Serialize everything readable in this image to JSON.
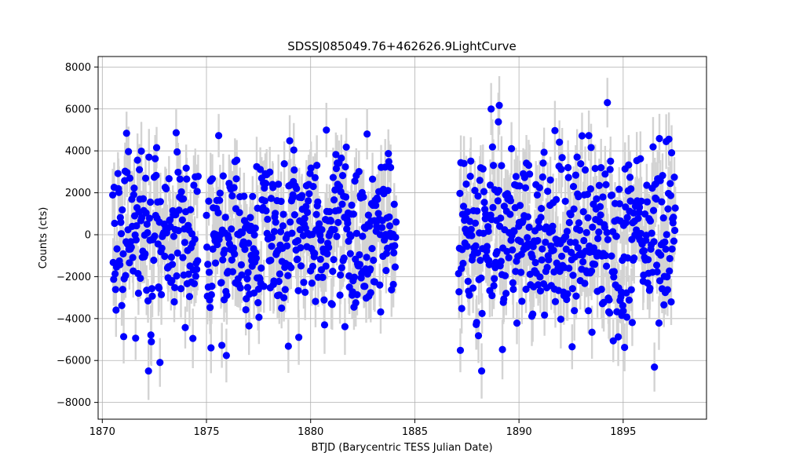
{
  "chart_data": {
    "type": "scatter",
    "title": "SDSSJ085049.76+462626.9LightCurve",
    "xlabel": "BTJD (Barycentric TESS Julian Date)",
    "ylabel": "Counts (cts)",
    "xlim": [
      1869.8,
      1899.0
    ],
    "ylim": [
      -8800,
      8500
    ],
    "xticks": [
      1870,
      1875,
      1880,
      1885,
      1890,
      1895
    ],
    "yticks": [
      -8000,
      -6000,
      -4000,
      -2000,
      0,
      2000,
      4000,
      6000,
      8000
    ],
    "grid": true,
    "marker_color": "#0000ff",
    "errorbar_color": "#d3d3d3",
    "series": [
      {
        "segments": [
          {
            "x_start": 1870.5,
            "x_end": 1874.6,
            "n": 180
          },
          {
            "x_start": 1875.0,
            "x_end": 1884.1,
            "n": 420
          },
          {
            "x_start": 1887.1,
            "x_end": 1897.5,
            "n": 480
          }
        ],
        "y_noise_sd": 2400,
        "y_err": 1200,
        "y_min": -6500,
        "y_max": 6300
      }
    ]
  }
}
